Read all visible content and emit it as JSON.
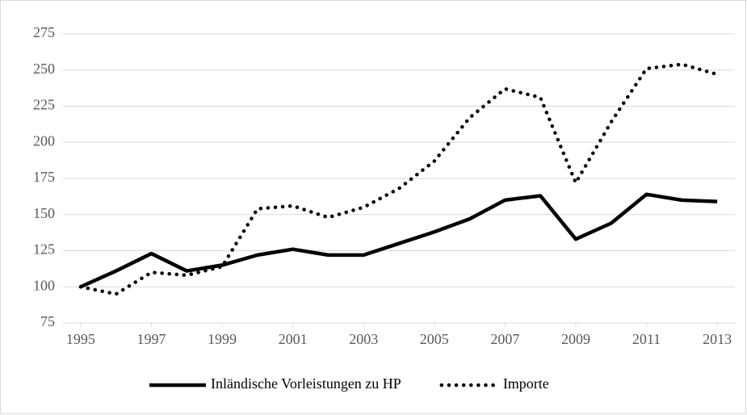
{
  "chart_data": {
    "type": "line",
    "x": [
      1995,
      1996,
      1997,
      1998,
      1999,
      2000,
      2001,
      2002,
      2003,
      2004,
      2005,
      2006,
      2007,
      2008,
      2009,
      2010,
      2011,
      2012,
      2013
    ],
    "series": [
      {
        "name": "Inländische Vorleistungen zu HP",
        "color": "#000000",
        "dash": "solid",
        "values": [
          100,
          111,
          123,
          111,
          115,
          122,
          126,
          122,
          122,
          130,
          138,
          147,
          160,
          163,
          133,
          144,
          164,
          160,
          159
        ]
      },
      {
        "name": "Importe",
        "color": "#000000",
        "dash": "dotted",
        "values": [
          100,
          95,
          110,
          108,
          114,
          154,
          156,
          148,
          155,
          168,
          187,
          217,
          237,
          231,
          172,
          214,
          251,
          254,
          247
        ]
      }
    ],
    "xlim": [
      1994.5,
      2013.5
    ],
    "xticks": [
      1995,
      1997,
      1999,
      2001,
      2003,
      2005,
      2007,
      2009,
      2011,
      2013
    ],
    "ylim": [
      75,
      275
    ],
    "yticks": [
      75,
      100,
      125,
      150,
      175,
      200,
      225,
      250,
      275
    ],
    "grid": true,
    "legend": "bottom"
  }
}
